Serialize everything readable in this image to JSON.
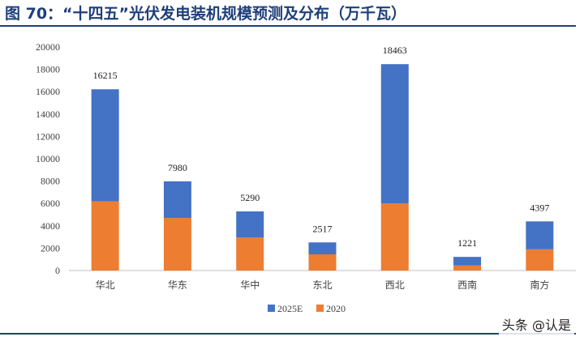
{
  "page_title": "图 70：“十四五”光伏发电装机规模预测及分布（万千瓦）",
  "watermark": "头条 @认是",
  "chart_data": {
    "type": "bar",
    "stacked": true,
    "categories": [
      "华北",
      "华东",
      "华中",
      "东北",
      "西北",
      "西南",
      "南方"
    ],
    "series": [
      {
        "name": "2020",
        "color": "#ed7d31",
        "values": [
          6200,
          4700,
          2950,
          1450,
          6000,
          450,
          1900
        ]
      },
      {
        "name": "2025E",
        "color": "#4472c4",
        "values": [
          10015,
          3280,
          2340,
          1067,
          12463,
          771,
          2497
        ]
      }
    ],
    "totals": [
      16215,
      7980,
      5290,
      2517,
      18463,
      1221,
      4397
    ],
    "yticks": [
      0,
      2000,
      4000,
      6000,
      8000,
      10000,
      12000,
      14000,
      16000,
      18000,
      20000
    ],
    "ylim": [
      0,
      20000
    ],
    "legend_position": "bottom",
    "legend_order": [
      "2025E",
      "2020"
    ],
    "grid": false
  }
}
